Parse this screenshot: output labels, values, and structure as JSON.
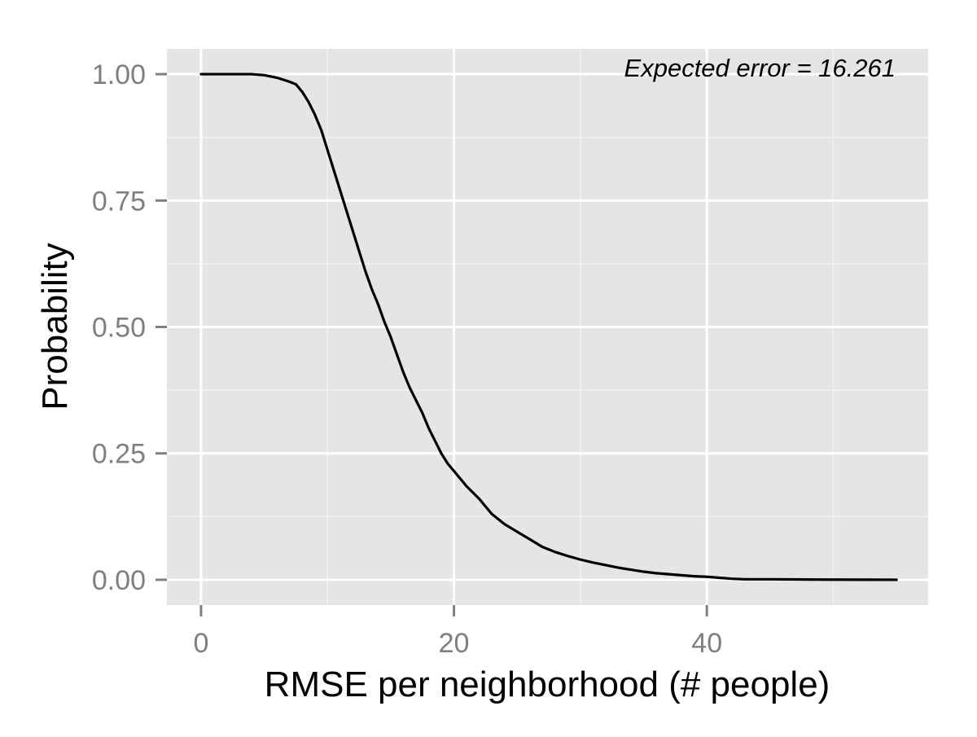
{
  "chart_data": {
    "type": "line",
    "title": "",
    "xlabel": "RMSE per neighborhood (# people)",
    "ylabel": "Probability",
    "xlim": [
      -2.7,
      57.5
    ],
    "ylim": [
      -0.05,
      1.05
    ],
    "x_ticks": [
      0,
      20,
      40
    ],
    "x_tick_labels": [
      "0",
      "20",
      "40"
    ],
    "x_minor_ticks": [
      10,
      30,
      50
    ],
    "y_ticks": [
      0,
      0.25,
      0.5,
      0.75,
      1.0
    ],
    "y_tick_labels": [
      "0.00",
      "0.25",
      "0.50",
      "0.75",
      "1.00"
    ],
    "y_minor_ticks": [
      0.125,
      0.375,
      0.625,
      0.875
    ],
    "grid": true,
    "legend": "none",
    "annotation": "Expected error = 16.261",
    "colors": {
      "panel_background": "#e5e5e5",
      "grid_major": "#ffffff",
      "grid_minor": "#f2f2f2",
      "line": "#000000",
      "tick_text": "#7f7f7f",
      "axis_title": "#000000"
    },
    "series": [
      {
        "points": [
          [
            0,
            1.0
          ],
          [
            2,
            1.0
          ],
          [
            4,
            1.0
          ],
          [
            5,
            0.998
          ],
          [
            6,
            0.993
          ],
          [
            7,
            0.985
          ],
          [
            7.5,
            0.98
          ],
          [
            8,
            0.965
          ],
          [
            8.5,
            0.945
          ],
          [
            9,
            0.92
          ],
          [
            9.5,
            0.89
          ],
          [
            10,
            0.85
          ],
          [
            10.5,
            0.81
          ],
          [
            11,
            0.77
          ],
          [
            11.5,
            0.73
          ],
          [
            12,
            0.69
          ],
          [
            12.5,
            0.65
          ],
          [
            13,
            0.61
          ],
          [
            13.5,
            0.575
          ],
          [
            14,
            0.545
          ],
          [
            14.5,
            0.51
          ],
          [
            15,
            0.48
          ],
          [
            15.5,
            0.445
          ],
          [
            16,
            0.41
          ],
          [
            16.5,
            0.38
          ],
          [
            17,
            0.355
          ],
          [
            17.5,
            0.33
          ],
          [
            18,
            0.3
          ],
          [
            18.5,
            0.275
          ],
          [
            19,
            0.25
          ],
          [
            19.5,
            0.23
          ],
          [
            20,
            0.215
          ],
          [
            20.5,
            0.2
          ],
          [
            21,
            0.185
          ],
          [
            22,
            0.16
          ],
          [
            23,
            0.13
          ],
          [
            24,
            0.11
          ],
          [
            25,
            0.095
          ],
          [
            26,
            0.08
          ],
          [
            27,
            0.065
          ],
          [
            28,
            0.055
          ],
          [
            29,
            0.047
          ],
          [
            30,
            0.04
          ],
          [
            31,
            0.034
          ],
          [
            32,
            0.029
          ],
          [
            33,
            0.024
          ],
          [
            34,
            0.02
          ],
          [
            35,
            0.016
          ],
          [
            36,
            0.013
          ],
          [
            37,
            0.011
          ],
          [
            38,
            0.009
          ],
          [
            39,
            0.007
          ],
          [
            40,
            0.006
          ],
          [
            41,
            0.004
          ],
          [
            42,
            0.002
          ],
          [
            43,
            0.001
          ],
          [
            45,
            0.001
          ],
          [
            48,
            0.0005
          ],
          [
            50,
            0.0003
          ],
          [
            53,
            0.0001
          ],
          [
            55,
            0.0
          ]
        ]
      }
    ]
  }
}
